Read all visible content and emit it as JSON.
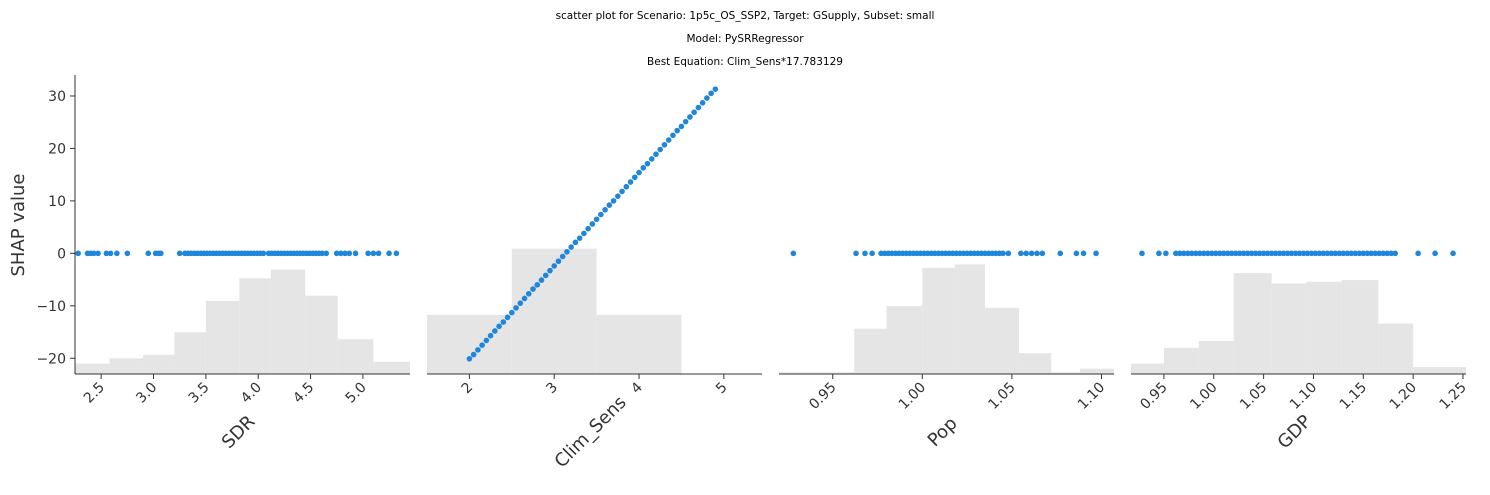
{
  "titles": [
    "scatter plot for Scenario: 1p5c_OS_SSP2, Target: GSupply, Subset: small",
    "Model: PySRRegressor",
    "Best Equation: Clim_Sens*17.783129"
  ],
  "ylabel": "SHAP value",
  "colors": {
    "point": "#1f86d9",
    "hist": "#e5e5e5",
    "axis": "#333333"
  },
  "chart_data": {
    "type": "scatter",
    "ylim": [
      -23,
      34
    ],
    "yticks": [
      -20,
      -10,
      0,
      10,
      20,
      30
    ],
    "grid": false,
    "legend": "none",
    "panels": [
      {
        "xlabel": "SDR",
        "xlim": [
          2.25,
          5.45
        ],
        "xticks": [
          "2.5",
          "3.0",
          "3.5",
          "4.0",
          "4.5",
          "5.0"
        ],
        "xtick_values": [
          2.5,
          3.0,
          3.5,
          4.0,
          4.5,
          5.0
        ],
        "histogram": {
          "edges": [
            2.25,
            2.58,
            2.9,
            3.2,
            3.5,
            3.82,
            4.12,
            4.45,
            4.76,
            5.1,
            5.45
          ],
          "fractions": [
            0.06,
            0.09,
            0.11,
            0.24,
            0.42,
            0.55,
            0.6,
            0.45,
            0.2,
            0.07
          ]
        },
        "points": {
          "x": [
            2.28,
            2.37,
            2.4,
            2.43,
            2.47,
            2.55,
            2.59,
            2.65,
            2.75,
            2.95,
            3.02,
            3.05,
            3.07,
            3.25,
            3.3,
            3.33,
            3.36,
            3.39,
            3.42,
            3.45,
            3.48,
            3.51,
            3.54,
            3.57,
            3.6,
            3.63,
            3.66,
            3.69,
            3.72,
            3.75,
            3.78,
            3.81,
            3.84,
            3.87,
            3.9,
            3.93,
            3.96,
            3.99,
            4.02,
            4.05,
            4.1,
            4.13,
            4.16,
            4.19,
            4.22,
            4.25,
            4.28,
            4.31,
            4.34,
            4.37,
            4.4,
            4.43,
            4.46,
            4.49,
            4.52,
            4.55,
            4.58,
            4.61,
            4.65,
            4.75,
            4.79,
            4.83,
            4.87,
            4.93,
            5.05,
            5.1,
            5.15,
            5.25,
            5.32
          ],
          "y": 0
        }
      },
      {
        "xlabel": "Clim_Sens",
        "xlim": [
          1.5,
          5.45
        ],
        "xticks": [
          "2",
          "3",
          "4",
          "5"
        ],
        "xtick_values": [
          2,
          3,
          4,
          5
        ],
        "histogram": {
          "edges": [
            1.5,
            2.5,
            3.5,
            4.5,
            5.45
          ],
          "fractions": [
            0.34,
            0.72,
            0.34,
            0.0
          ]
        },
        "points": {
          "x": [
            2.0,
            2.05,
            2.1,
            2.15,
            2.2,
            2.25,
            2.3,
            2.35,
            2.4,
            2.45,
            2.5,
            2.55,
            2.6,
            2.65,
            2.7,
            2.75,
            2.8,
            2.85,
            2.9,
            2.95,
            3.0,
            3.05,
            3.1,
            3.15,
            3.2,
            3.25,
            3.3,
            3.35,
            3.4,
            3.45,
            3.5,
            3.55,
            3.6,
            3.65,
            3.7,
            3.75,
            3.8,
            3.85,
            3.9,
            3.95,
            4.0,
            4.05,
            4.1,
            4.15,
            4.2,
            4.25,
            4.3,
            4.35,
            4.4,
            4.45,
            4.5,
            4.55,
            4.6,
            4.65,
            4.7,
            4.75,
            4.8,
            4.85,
            4.9
          ],
          "y": [
            -20.1,
            -19.3,
            -18.4,
            -17.5,
            -16.6,
            -15.7,
            -14.8,
            -13.9,
            -13.1,
            -12.2,
            -11.3,
            -10.4,
            -9.5,
            -8.6,
            -7.7,
            -6.8,
            -6.0,
            -5.1,
            -4.2,
            -3.3,
            -2.4,
            -1.5,
            -0.6,
            0.3,
            1.2,
            2.1,
            2.9,
            3.8,
            4.7,
            5.6,
            6.5,
            7.4,
            8.3,
            9.2,
            10.0,
            10.9,
            11.8,
            12.7,
            13.6,
            14.5,
            15.4,
            16.3,
            17.1,
            18.0,
            18.9,
            19.8,
            20.7,
            21.6,
            22.5,
            23.4,
            24.2,
            25.1,
            26.0,
            26.9,
            27.8,
            28.7,
            29.6,
            30.5,
            31.3
          ]
        }
      },
      {
        "xlabel": "Pop",
        "xlim": [
          0.92,
          1.107
        ],
        "xticks": [
          "0.95",
          "1.00",
          "1.05",
          "1.10"
        ],
        "xtick_values": [
          0.95,
          1.0,
          1.05,
          1.1
        ],
        "histogram": {
          "edges": [
            0.92,
            0.942,
            0.962,
            0.98,
            1.0,
            1.018,
            1.035,
            1.054,
            1.072,
            1.088,
            1.107
          ],
          "fractions": [
            0.01,
            0.01,
            0.26,
            0.39,
            0.61,
            0.63,
            0.38,
            0.12,
            0.01,
            0.03
          ]
        },
        "points": {
          "x": [
            0.928,
            0.963,
            0.968,
            0.972,
            0.977,
            0.979,
            0.981,
            0.983,
            0.985,
            0.987,
            0.989,
            0.991,
            0.993,
            0.995,
            0.997,
            0.999,
            1.001,
            1.003,
            1.005,
            1.007,
            1.009,
            1.011,
            1.013,
            1.015,
            1.017,
            1.019,
            1.021,
            1.023,
            1.025,
            1.027,
            1.029,
            1.031,
            1.033,
            1.035,
            1.037,
            1.039,
            1.041,
            1.043,
            1.045,
            1.048,
            1.055,
            1.058,
            1.061,
            1.064,
            1.067,
            1.077,
            1.086,
            1.09,
            1.097
          ],
          "y": 0
        }
      },
      {
        "xlabel": "GDP",
        "xlim": [
          0.917,
          1.253
        ],
        "xticks": [
          "0.95",
          "1.00",
          "1.05",
          "1.10",
          "1.15",
          "1.20",
          "1.25"
        ],
        "xtick_values": [
          0.95,
          1.0,
          1.05,
          1.1,
          1.15,
          1.2,
          1.25
        ],
        "histogram": {
          "edges": [
            0.917,
            0.95,
            0.985,
            1.02,
            1.058,
            1.093,
            1.128,
            1.165,
            1.2,
            1.235,
            1.253
          ],
          "fractions": [
            0.06,
            0.15,
            0.19,
            0.58,
            0.52,
            0.53,
            0.54,
            0.29,
            0.04,
            0.04
          ]
        },
        "points": {
          "x": [
            0.928,
            0.945,
            0.952,
            0.962,
            0.966,
            0.97,
            0.974,
            0.978,
            0.982,
            0.986,
            0.99,
            0.994,
            0.998,
            1.002,
            1.006,
            1.01,
            1.014,
            1.018,
            1.022,
            1.026,
            1.03,
            1.034,
            1.038,
            1.042,
            1.046,
            1.05,
            1.054,
            1.058,
            1.062,
            1.066,
            1.07,
            1.074,
            1.078,
            1.082,
            1.086,
            1.09,
            1.094,
            1.098,
            1.102,
            1.106,
            1.11,
            1.114,
            1.118,
            1.122,
            1.126,
            1.13,
            1.134,
            1.138,
            1.142,
            1.146,
            1.15,
            1.154,
            1.158,
            1.162,
            1.166,
            1.17,
            1.174,
            1.178,
            1.182,
            1.205,
            1.222,
            1.24
          ],
          "y": 0
        }
      }
    ]
  }
}
